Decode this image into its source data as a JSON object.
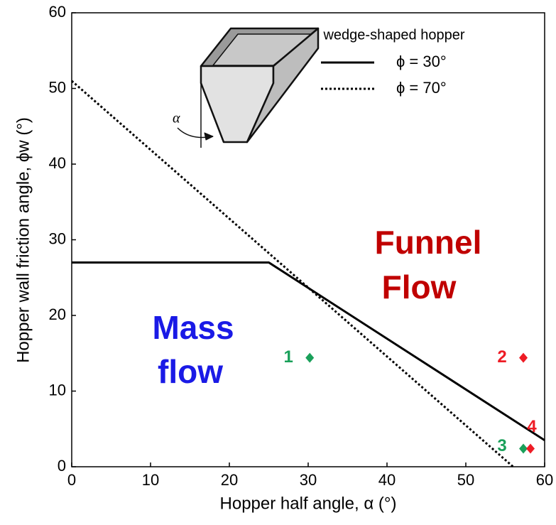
{
  "chart_data": {
    "type": "line",
    "x_label": "Hopper half angle, α (°)",
    "y_label": "Hopper wall friction angle, ϕw (°)",
    "legend_title": "wedge-shaped hopper",
    "diagram_label": "α",
    "xlim": [
      0,
      60
    ],
    "xticks": [
      0,
      10,
      20,
      30,
      40,
      50,
      60
    ],
    "ylim": [
      0,
      60
    ],
    "yticks": [
      0,
      10,
      20,
      30,
      40,
      50,
      60
    ],
    "grid": false,
    "series": [
      {
        "name": "ϕ = 30°",
        "color": "#000000",
        "style": "solid",
        "x": [
          0,
          25,
          60
        ],
        "values": [
          27,
          27,
          3.5
        ]
      },
      {
        "name": "ϕ = 70°",
        "color": "#000000",
        "style": "dotted",
        "x": [
          0,
          56
        ],
        "values": [
          51,
          0
        ]
      }
    ],
    "points": [
      {
        "label": "1",
        "x": 30.2,
        "y": 14.4,
        "color": "#1aa05a"
      },
      {
        "label": "2",
        "x": 57.3,
        "y": 14.4,
        "color": "#ee1c25"
      },
      {
        "label": "3",
        "x": 57.3,
        "y": 2.4,
        "color": "#1aa05a"
      },
      {
        "label": "4",
        "x": 58.2,
        "y": 2.4,
        "color": "#ee1c25"
      }
    ],
    "annotations": [
      {
        "text": "Funnel",
        "color": "#c00000"
      },
      {
        "text": "Flow",
        "color": "#c00000"
      },
      {
        "text": "Mass",
        "color": "#1a1ae6"
      },
      {
        "text": "flow",
        "color": "#1a1ae6"
      }
    ]
  }
}
